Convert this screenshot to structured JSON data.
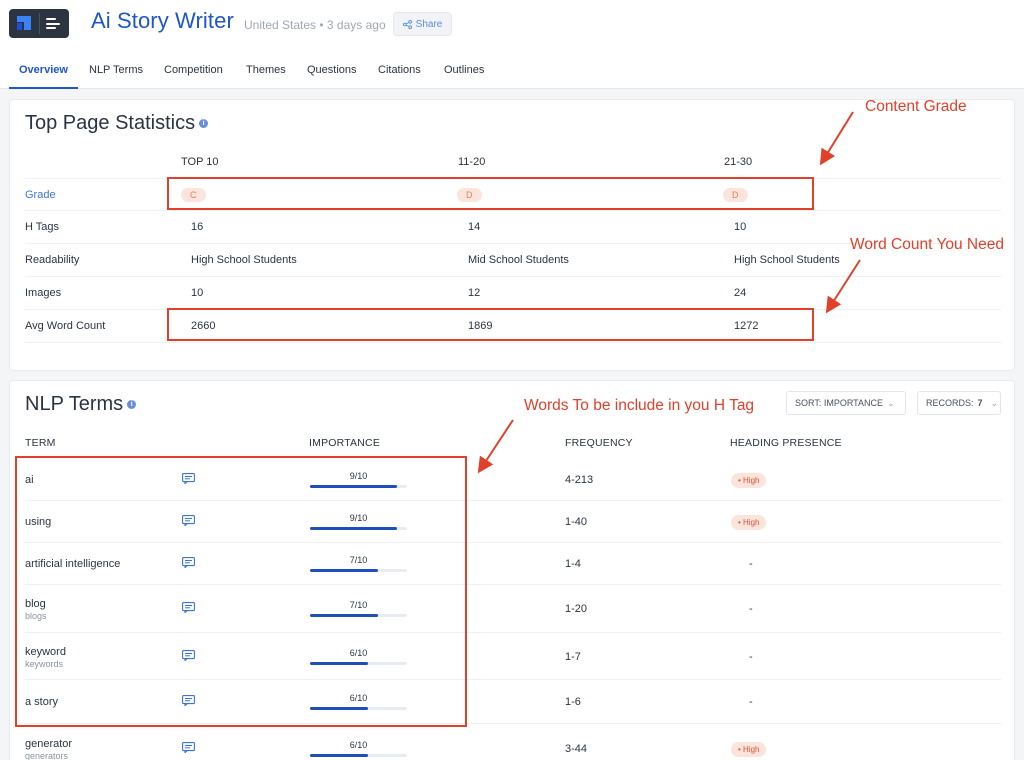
{
  "header": {
    "title": "Ai Story Writer",
    "meta": "United States • 3 days ago",
    "share_label": "Share",
    "tabs": [
      "Overview",
      "NLP Terms",
      "Competition",
      "Themes",
      "Questions",
      "Citations",
      "Outlines"
    ],
    "active_tab": "Overview"
  },
  "stats": {
    "title": "Top Page Statistics",
    "columns": [
      "TOP 10",
      "11-20",
      "21-30"
    ],
    "rows": [
      {
        "label": "Grade",
        "values": [
          "C",
          "D",
          "D"
        ]
      },
      {
        "label": "H Tags",
        "values": [
          "16",
          "14",
          "10"
        ]
      },
      {
        "label": "Readability",
        "values": [
          "High School Students",
          "Mid School Students",
          "High School Students"
        ]
      },
      {
        "label": "Images",
        "values": [
          "10",
          "12",
          "24"
        ]
      },
      {
        "label": "Avg Word Count",
        "values": [
          "2660",
          "1869",
          "1272"
        ]
      }
    ]
  },
  "nlp": {
    "title": "NLP Terms",
    "sort_label": "SORT: IMPORTANCE",
    "records_label": "RECORDS:",
    "records_value": "7",
    "headers": {
      "term": "TERM",
      "importance": "IMPORTANCE",
      "frequency": "FREQUENCY",
      "presence": "HEADING PRESENCE"
    },
    "rows": [
      {
        "term": "ai",
        "sub": "",
        "importance": "9/10",
        "importance_value": 0.9,
        "frequency": "4-213",
        "presence": "• High"
      },
      {
        "term": "using",
        "sub": "",
        "importance": "9/10",
        "importance_value": 0.9,
        "frequency": "1-40",
        "presence": "• High"
      },
      {
        "term": "artificial intelligence",
        "sub": "",
        "importance": "7/10",
        "importance_value": 0.7,
        "frequency": "1-4",
        "presence": "-"
      },
      {
        "term": "blog",
        "sub": "blogs",
        "importance": "7/10",
        "importance_value": 0.7,
        "frequency": "1-20",
        "presence": "-"
      },
      {
        "term": "keyword",
        "sub": "keywords",
        "importance": "6/10",
        "importance_value": 0.6,
        "frequency": "1-7",
        "presence": "-"
      },
      {
        "term": "a story",
        "sub": "",
        "importance": "6/10",
        "importance_value": 0.6,
        "frequency": "1-6",
        "presence": "-"
      },
      {
        "term": "generator",
        "sub": "generators",
        "importance": "6/10",
        "importance_value": 0.6,
        "frequency": "3-44",
        "presence": "• High"
      }
    ]
  },
  "annotations": {
    "content_grade": "Content Grade",
    "word_count": "Word Count You Need",
    "h_tag_words": "Words To be include in you H Tag"
  },
  "colors": {
    "accent": "#1f56c8",
    "annotation": "#e0412b",
    "pill_bg": "#fbe4dc",
    "bar_fill": "#1f4fb8"
  }
}
